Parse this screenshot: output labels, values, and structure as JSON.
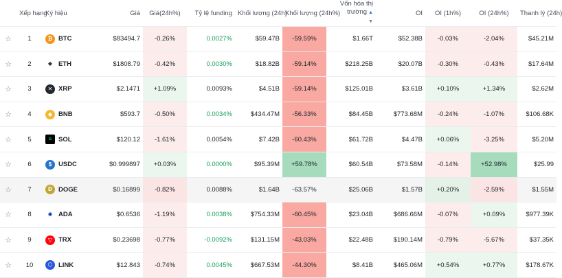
{
  "headers": {
    "rank": "Xếp hạng",
    "symbol": "Ký hiệu",
    "price": "Giá",
    "price_change": "Giá(24h%)",
    "funding": "Tỷ lệ funding",
    "volume": "Khối lượng (24h)",
    "volume_change": "Khối lượng (24h%)",
    "market_cap": "Vốn hóa thị trường",
    "oi": "OI",
    "oi_1h": "OI (1h%)",
    "oi_24h": "OI (24h%)",
    "liquidation": "Thanh lý (24h)"
  },
  "colors": {
    "positive": "#16a05b",
    "negative_bg": "#fdecec",
    "positive_bg": "#ebf6ee",
    "strong_negative_bg": "#f9a8a2",
    "strong_positive_bg": "#a6dcbc"
  },
  "rows": [
    {
      "rank": "1",
      "symbol": "BTC",
      "icon": "bitcoin-icon",
      "price": "$83494.7",
      "price_change": "-0.26%",
      "funding": "0.0027%",
      "volume": "$59.47B",
      "volume_change": "-59.59%",
      "market_cap": "$1.66T",
      "oi": "$52.38B",
      "oi_1h": "-0.03%",
      "oi_24h": "-2.04%",
      "liquidation": "$45.21M"
    },
    {
      "rank": "2",
      "symbol": "ETH",
      "icon": "ethereum-icon",
      "price": "$1808.79",
      "price_change": "-0.42%",
      "funding": "0.0030%",
      "volume": "$18.82B",
      "volume_change": "-59.14%",
      "market_cap": "$218.25B",
      "oi": "$20.07B",
      "oi_1h": "-0.30%",
      "oi_24h": "-0.43%",
      "liquidation": "$17.64M"
    },
    {
      "rank": "3",
      "symbol": "XRP",
      "icon": "xrp-icon",
      "price": "$2.1471",
      "price_change": "+1.09%",
      "funding": "0.0093%",
      "volume": "$4.51B",
      "volume_change": "-59.14%",
      "market_cap": "$125.01B",
      "oi": "$3.61B",
      "oi_1h": "+0.10%",
      "oi_24h": "+1.34%",
      "liquidation": "$2.62M"
    },
    {
      "rank": "4",
      "symbol": "BNB",
      "icon": "bnb-icon",
      "price": "$593.7",
      "price_change": "-0.50%",
      "funding": "0.0034%",
      "volume": "$434.47M",
      "volume_change": "-56.33%",
      "market_cap": "$84.45B",
      "oi": "$773.68M",
      "oi_1h": "-0.24%",
      "oi_24h": "-1.07%",
      "liquidation": "$106.68K"
    },
    {
      "rank": "5",
      "symbol": "SOL",
      "icon": "solana-icon",
      "price": "$120.12",
      "price_change": "-1.61%",
      "funding": "0.0054%",
      "volume": "$7.42B",
      "volume_change": "-60.43%",
      "market_cap": "$61.72B",
      "oi": "$4.47B",
      "oi_1h": "+0.06%",
      "oi_24h": "-3.25%",
      "liquidation": "$5.20M"
    },
    {
      "rank": "6",
      "symbol": "USDC",
      "icon": "usdc-icon",
      "price": "$0.999897",
      "price_change": "+0.03%",
      "funding": "0.0000%",
      "volume": "$95.39M",
      "volume_change": "+59.78%",
      "market_cap": "$60.54B",
      "oi": "$73.58M",
      "oi_1h": "-0.14%",
      "oi_24h": "+52.98%",
      "liquidation": "$25.99"
    },
    {
      "rank": "7",
      "symbol": "DOGE",
      "icon": "doge-icon",
      "price": "$0.16899",
      "price_change": "-0.82%",
      "funding": "0.0088%",
      "volume": "$1.64B",
      "volume_change": "-63.57%",
      "market_cap": "$25.06B",
      "oi": "$1.57B",
      "oi_1h": "+0.20%",
      "oi_24h": "-2.59%",
      "liquidation": "$1.55M"
    },
    {
      "rank": "8",
      "symbol": "ADA",
      "icon": "cardano-icon",
      "price": "$0.6536",
      "price_change": "-1.19%",
      "funding": "0.0038%",
      "volume": "$754.33M",
      "volume_change": "-60.45%",
      "market_cap": "$23.04B",
      "oi": "$686.66M",
      "oi_1h": "-0.07%",
      "oi_24h": "+0.09%",
      "liquidation": "$977.39K"
    },
    {
      "rank": "9",
      "symbol": "TRX",
      "icon": "tron-icon",
      "price": "$0.23698",
      "price_change": "-0.77%",
      "funding": "-0.0092%",
      "volume": "$131.15M",
      "volume_change": "-43.03%",
      "market_cap": "$22.48B",
      "oi": "$190.14M",
      "oi_1h": "-0.79%",
      "oi_24h": "-5.67%",
      "liquidation": "$37.35K"
    },
    {
      "rank": "10",
      "symbol": "LINK",
      "icon": "chainlink-icon",
      "price": "$12.843",
      "price_change": "-0.74%",
      "funding": "0.0045%",
      "volume": "$667.53M",
      "volume_change": "-44.30%",
      "market_cap": "$8.41B",
      "oi": "$465.06M",
      "oi_1h": "+0.54%",
      "oi_24h": "+0.77%",
      "liquidation": "$178.67K"
    }
  ]
}
